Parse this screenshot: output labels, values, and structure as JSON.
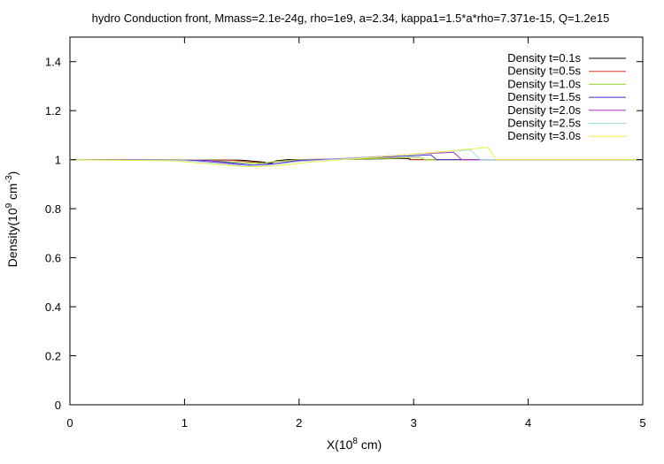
{
  "chart_data": {
    "type": "line",
    "title": "hydro Conduction front, Mmass=2.1e-24g, rho=1e9, a=2.34, kappa1=1.5*a*rho=7.371e-15, Q=1.2e15",
    "xlabel": "X(10",
    "xlabel_sup": "8",
    "xlabel_end": " cm)",
    "ylabel": "Density(10",
    "ylabel_sup": "9",
    "ylabel_mid": " cm",
    "ylabel_sup2": "-3",
    "ylabel_end": ")",
    "xlim": [
      0,
      5
    ],
    "ylim": [
      0,
      1.5
    ],
    "xticks": [
      {
        "value": 0,
        "label": "0"
      },
      {
        "value": 1,
        "label": "1"
      },
      {
        "value": 2,
        "label": "2"
      },
      {
        "value": 3,
        "label": "3"
      },
      {
        "value": 4,
        "label": "4"
      },
      {
        "value": 5,
        "label": "5"
      }
    ],
    "yticks": [
      {
        "value": 0,
        "label": "0"
      },
      {
        "value": 0.2,
        "label": "0.2"
      },
      {
        "value": 0.4,
        "label": "0.4"
      },
      {
        "value": 0.6,
        "label": "0.6"
      },
      {
        "value": 0.8,
        "label": "0.8"
      },
      {
        "value": 1,
        "label": "1"
      },
      {
        "value": 1.2,
        "label": "1.2"
      },
      {
        "value": 1.4,
        "label": "1.4"
      }
    ],
    "grid": false,
    "legend_position": "top-right",
    "series": [
      {
        "name": "Density t=0.1s",
        "color": "#000000",
        "points": [
          [
            0,
            1.0
          ],
          [
            1.5,
            0.998
          ],
          [
            1.7,
            0.99
          ],
          [
            1.75,
            0.985
          ],
          [
            1.8,
            0.995
          ],
          [
            1.9,
            1.0
          ],
          [
            2.5,
            1.002
          ],
          [
            2.95,
            1.005
          ],
          [
            2.97,
            1.0
          ],
          [
            5,
            1.0
          ]
        ]
      },
      {
        "name": "Density t=0.5s",
        "color": "#d2362c",
        "points": [
          [
            0,
            1.0
          ],
          [
            1.4,
            0.998
          ],
          [
            1.6,
            0.99
          ],
          [
            1.7,
            0.986
          ],
          [
            1.8,
            0.993
          ],
          [
            2.0,
            1.0
          ],
          [
            2.6,
            1.004
          ],
          [
            2.95,
            1.008
          ],
          [
            2.98,
            1.0
          ],
          [
            5,
            1.0
          ]
        ]
      },
      {
        "name": "Density t=1.0s",
        "color": "#8fd82a",
        "points": [
          [
            0,
            1.0
          ],
          [
            1.2,
            0.998
          ],
          [
            1.5,
            0.988
          ],
          [
            1.65,
            0.985
          ],
          [
            1.8,
            0.992
          ],
          [
            2.0,
            1.0
          ],
          [
            2.8,
            1.005
          ],
          [
            3.05,
            1.01
          ],
          [
            3.1,
            1.0
          ],
          [
            5,
            1.0
          ]
        ]
      },
      {
        "name": "Density t=1.5s",
        "color": "#3a2fd2",
        "points": [
          [
            0,
            1.0
          ],
          [
            1.2,
            0.997
          ],
          [
            1.45,
            0.985
          ],
          [
            1.6,
            0.978
          ],
          [
            1.8,
            0.985
          ],
          [
            2.0,
            0.997
          ],
          [
            2.6,
            1.008
          ],
          [
            3.0,
            1.016
          ],
          [
            3.15,
            1.02
          ],
          [
            3.2,
            1.0
          ],
          [
            5,
            1.0
          ]
        ]
      },
      {
        "name": "Density t=2.0s",
        "color": "#b22fd0",
        "points": [
          [
            0,
            1.0
          ],
          [
            1.1,
            0.996
          ],
          [
            1.4,
            0.984
          ],
          [
            1.55,
            0.975
          ],
          [
            1.75,
            0.98
          ],
          [
            2.0,
            0.995
          ],
          [
            2.6,
            1.01
          ],
          [
            3.1,
            1.025
          ],
          [
            3.35,
            1.03
          ],
          [
            3.42,
            1.0
          ],
          [
            5,
            1.0
          ]
        ]
      },
      {
        "name": "Density t=2.5s",
        "color": "#9ae8ec",
        "points": [
          [
            0,
            1.0
          ],
          [
            1.0,
            0.996
          ],
          [
            1.35,
            0.982
          ],
          [
            1.55,
            0.974
          ],
          [
            1.75,
            0.978
          ],
          [
            2.0,
            0.992
          ],
          [
            2.7,
            1.012
          ],
          [
            3.2,
            1.03
          ],
          [
            3.5,
            1.04
          ],
          [
            3.58,
            1.0
          ],
          [
            5,
            1.0
          ]
        ]
      },
      {
        "name": "Density t=3.0s",
        "color": "#f2ee45",
        "points": [
          [
            0,
            1.0
          ],
          [
            0.9,
            0.995
          ],
          [
            1.3,
            0.98
          ],
          [
            1.55,
            0.971
          ],
          [
            1.8,
            0.975
          ],
          [
            2.1,
            0.99
          ],
          [
            2.8,
            1.015
          ],
          [
            3.3,
            1.035
          ],
          [
            3.65,
            1.05
          ],
          [
            3.72,
            1.0
          ],
          [
            5,
            1.0
          ]
        ]
      }
    ]
  }
}
